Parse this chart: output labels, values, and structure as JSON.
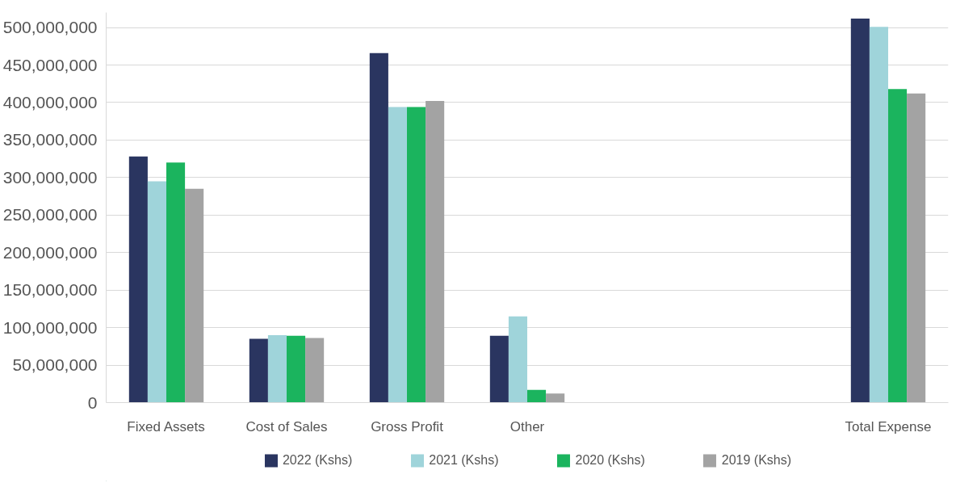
{
  "chart_data": {
    "type": "bar",
    "categories": [
      "Fixed Assets",
      "Cost of Sales",
      "Gross Profit",
      "Other",
      null,
      null,
      "Total Expense"
    ],
    "series": [
      {
        "name": "2022 (Kshs)",
        "color": "#2a3560",
        "values": [
          328000000,
          85000000,
          466000000,
          89000000,
          null,
          null,
          512000000
        ]
      },
      {
        "name": "2021 (Kshs)",
        "color": "#9fd4da",
        "values": [
          295000000,
          90000000,
          394000000,
          115000000,
          null,
          null,
          501000000
        ]
      },
      {
        "name": "2020 (Kshs)",
        "color": "#1bb45e",
        "values": [
          320000000,
          89000000,
          394000000,
          17000000,
          null,
          null,
          418000000
        ]
      },
      {
        "name": "2019 (Kshs)",
        "color": "#a3a3a3",
        "values": [
          285000000,
          86000000,
          402000000,
          12000000,
          null,
          null,
          412000000
        ]
      }
    ],
    "ylim": [
      0,
      520000000
    ],
    "yticks": [
      {
        "value": 0,
        "label": "0"
      },
      {
        "value": 50000000,
        "label": "50,000,000"
      },
      {
        "value": 100000000,
        "label": "100,000,000"
      },
      {
        "value": 150000000,
        "label": "150,000,000"
      },
      {
        "value": 200000000,
        "label": "200,000,000"
      },
      {
        "value": 250000000,
        "label": "250,000,000"
      },
      {
        "value": 300000000,
        "label": "300,000,000"
      },
      {
        "value": 350000000,
        "label": "350,000,000"
      },
      {
        "value": 400000000,
        "label": "400,000,000"
      },
      {
        "value": 450000000,
        "label": "450,000,000"
      },
      {
        "value": 500000000,
        "label": "500,000,000"
      }
    ],
    "grid": "y",
    "legend": "bottom"
  }
}
